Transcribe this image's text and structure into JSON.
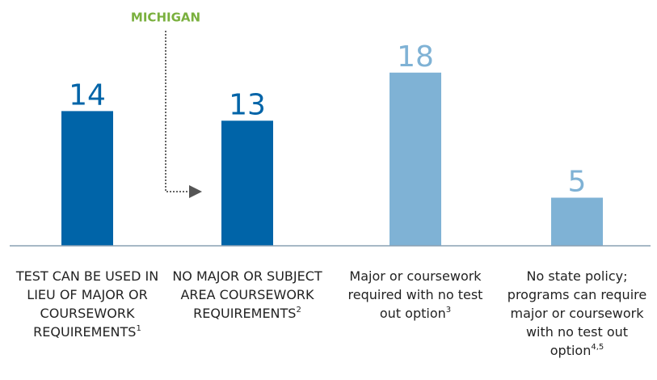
{
  "chart_data": {
    "type": "bar",
    "annotation": "MICHIGAN",
    "categories": [
      "TEST CAN BE USED IN LIEU OF MAJOR OR COURSEWORK REQUIREMENTS",
      "NO MAJOR OR SUBJECT AREA COURSEWORK REQUIREMENTS",
      "Major or coursework required with no test out option",
      "No state policy; programs can require major or coursework with no test out option"
    ],
    "footnotes": [
      "1",
      "2",
      "3",
      "4,5"
    ],
    "values": [
      14,
      13,
      18,
      5
    ],
    "colors": [
      "#0064a8",
      "#0064a8",
      "#7fb2d5",
      "#7fb2d5"
    ],
    "ylim": [
      0,
      25
    ]
  }
}
